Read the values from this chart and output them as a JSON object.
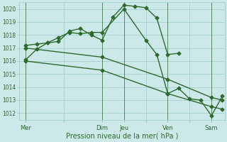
{
  "xlabel": "Pression niveau de la mer( hPa )",
  "ylim": [
    1011.5,
    1020.5
  ],
  "yticks": [
    1012,
    1013,
    1014,
    1015,
    1016,
    1017,
    1018,
    1019,
    1020
  ],
  "bg_color": "#cce8e8",
  "grid_color": "#99cccc",
  "line_color": "#2d6a2d",
  "marker": "D",
  "markersize": 2.5,
  "linewidth": 1.0,
  "xtick_labels": [
    "Mer",
    "",
    "Dim",
    "Jeu",
    "",
    "Ven",
    "",
    "Sam"
  ],
  "xtick_positions": [
    0,
    1.75,
    3.5,
    4.5,
    5.5,
    6.5,
    7.5,
    8.5
  ],
  "vline_positions": [
    0,
    3.5,
    4.5,
    6.5,
    8.5
  ],
  "xlim": [
    -0.3,
    9.1
  ],
  "series": [
    {
      "x": [
        0,
        0.5,
        1.0,
        1.5,
        2.0,
        2.5,
        3.0,
        3.5,
        4.0,
        4.5,
        5.0,
        5.5,
        6.0,
        6.5,
        7.0
      ],
      "y": [
        1016.1,
        1016.9,
        1017.4,
        1017.5,
        1018.3,
        1018.5,
        1018.0,
        1017.6,
        1019.4,
        1020.3,
        1020.2,
        1020.1,
        1019.3,
        1016.5,
        1016.6
      ]
    },
    {
      "x": [
        0,
        0.5,
        1.0,
        1.5,
        2.0,
        2.5,
        3.0,
        3.5,
        4.5,
        5.5,
        6.0,
        6.5,
        7.0,
        7.5,
        8.0,
        8.5,
        9.0
      ],
      "y": [
        1017.2,
        1017.3,
        1017.4,
        1017.8,
        1018.2,
        1018.1,
        1018.2,
        1018.2,
        1020.0,
        1017.6,
        1016.5,
        1013.5,
        1013.9,
        1013.1,
        1013.0,
        1011.8,
        1013.3
      ]
    },
    {
      "x": [
        0,
        3.5,
        6.5,
        8.5,
        9.0
      ],
      "y": [
        1017.0,
        1016.3,
        1014.6,
        1013.2,
        1013.0
      ]
    },
    {
      "x": [
        0,
        3.5,
        6.5,
        8.5,
        9.0
      ],
      "y": [
        1016.0,
        1015.3,
        1013.5,
        1012.5,
        1012.3
      ]
    }
  ]
}
